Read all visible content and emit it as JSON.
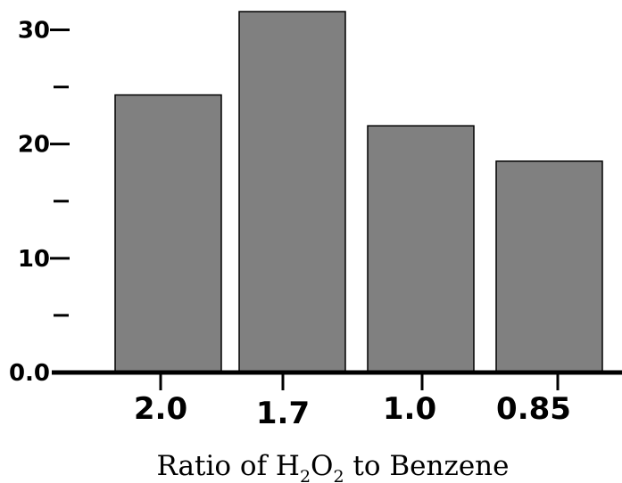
{
  "chart_data": {
    "type": "bar",
    "categories": [
      "2.0",
      "1.7",
      "1.0",
      "0.85"
    ],
    "values": [
      24.3,
      31.6,
      21.6,
      18.5
    ],
    "ylim": [
      0,
      31.6
    ],
    "major_ticks": [
      0,
      10,
      20,
      30
    ],
    "minor_ticks": [
      5,
      15,
      25
    ],
    "ytick_labels": [
      "0.0",
      "10",
      "20",
      "30"
    ],
    "xlabel": {
      "parts": [
        "Ratio of H",
        "2",
        "O",
        "2",
        " to Benzene"
      ]
    },
    "grid": false,
    "legend": "none",
    "colors": {
      "bar_fill": "#808080",
      "bar_stroke": "#000000",
      "axis": "#000000"
    }
  }
}
